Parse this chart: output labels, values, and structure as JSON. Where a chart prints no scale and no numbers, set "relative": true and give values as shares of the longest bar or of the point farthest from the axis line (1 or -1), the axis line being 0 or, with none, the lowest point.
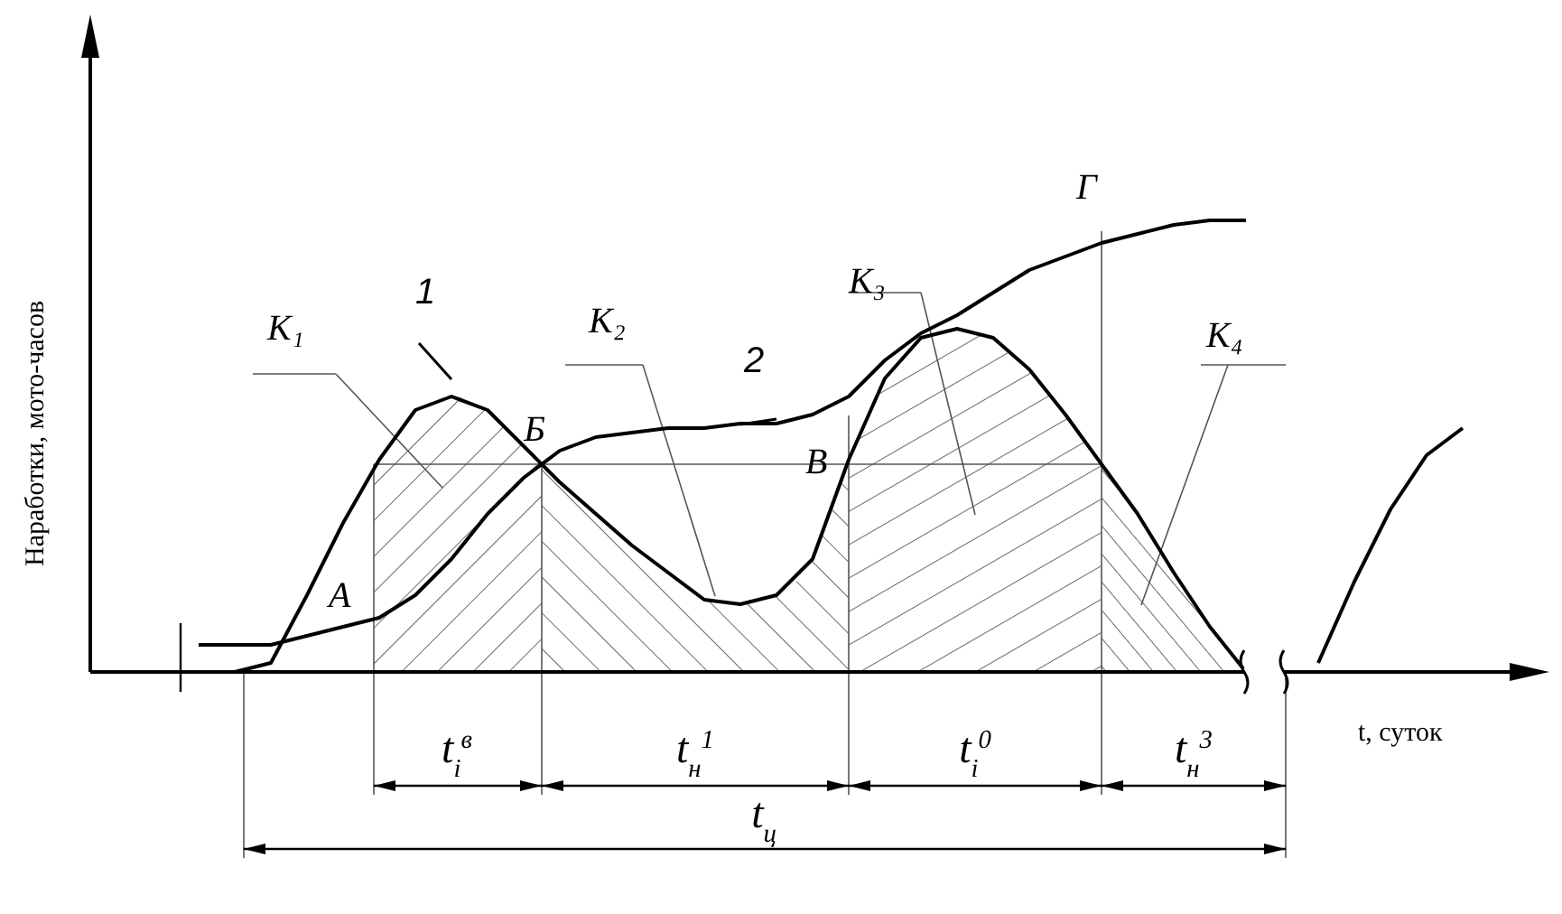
{
  "chart_data": {
    "type": "line",
    "relative": true,
    "tick_labels": false,
    "ylabel": "Наработки, мото-часов",
    "xlabel": "t, суток",
    "categories": [
      null,
      null,
      null,
      null,
      null,
      null,
      null,
      null,
      null,
      null,
      null,
      null,
      null,
      null,
      null,
      null,
      null,
      null,
      null,
      null,
      null,
      null,
      null,
      null,
      null,
      null,
      null,
      null,
      null,
      null,
      null,
      null,
      null,
      null,
      null,
      null,
      null
    ],
    "series": [
      {
        "name": "1",
        "color": "#000000",
        "values": [
          null,
          null,
          0,
          0.02,
          0.17,
          0.33,
          0.47,
          0.58,
          0.61,
          0.58,
          0.5,
          0.42,
          0.35,
          0.28,
          0.22,
          0.16,
          0.15,
          0.17,
          0.25,
          0.47,
          0.65,
          0.74,
          0.76,
          0.74,
          0.67,
          0.57,
          0.46,
          0.35,
          0.22,
          0.1,
          0,
          null,
          null,
          null,
          null,
          null,
          null
        ]
      },
      {
        "name": "2",
        "color": "#000000",
        "values": [
          null,
          0.06,
          0.06,
          0.06,
          0.08,
          0.1,
          0.12,
          0.17,
          0.25,
          0.35,
          0.43,
          0.49,
          0.52,
          0.53,
          0.54,
          0.54,
          0.55,
          0.55,
          0.57,
          0.61,
          0.69,
          0.75,
          0.79,
          0.84,
          0.89,
          0.92,
          0.95,
          0.97,
          0.99,
          1,
          1,
          null,
          null,
          null,
          null,
          null,
          null
        ]
      },
      {
        "color": "#000000",
        "values": [
          null,
          null,
          null,
          null,
          null,
          null,
          null,
          null,
          null,
          null,
          null,
          null,
          null,
          null,
          null,
          null,
          null,
          null,
          null,
          null,
          null,
          null,
          null,
          null,
          null,
          null,
          null,
          null,
          null,
          null,
          null,
          null,
          0.02,
          0.2,
          0.36,
          0.48,
          0.54
        ]
      }
    ],
    "ref_lines": [
      {
        "axis": "y",
        "value": 0.46,
        "color": "#555555"
      }
    ],
    "annotations": [
      "K₁",
      "K₂",
      "K₃",
      "K₄",
      "А",
      "Б",
      "В",
      "Г",
      "t$_{i}$$^{в}$",
      "t$_{н}$$^{1}$",
      "t$_{i}$$^{0}$",
      "t$_{н}$$^{3}$",
      "t$_{ц}$"
    ]
  }
}
